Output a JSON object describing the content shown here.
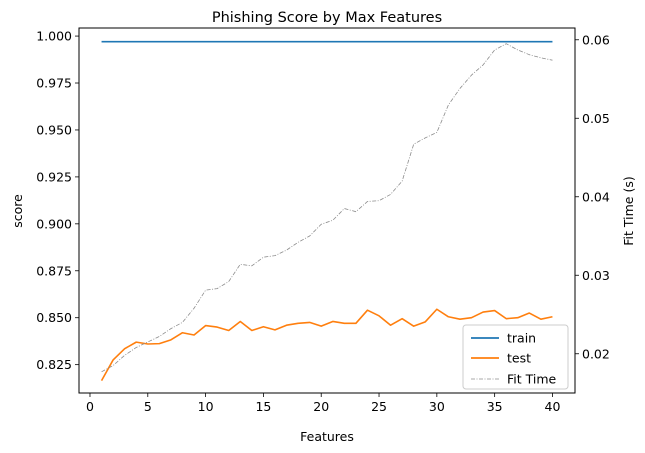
{
  "chart_data": {
    "type": "line",
    "title": "Phishing Score by Max Features",
    "xlabel": "Features",
    "ylabel": "score",
    "ylabel_right": "Fit Time (s)",
    "xlim": [
      -0.95,
      41.95
    ],
    "ylim": [
      0.8099,
      1.0043
    ],
    "ylim_right": [
      0.015,
      0.0615
    ],
    "xticks": [
      0,
      5,
      10,
      15,
      20,
      25,
      30,
      35,
      40
    ],
    "yticks": [
      0.825,
      0.85,
      0.875,
      0.9,
      0.925,
      0.95,
      0.975,
      1.0
    ],
    "yticks_right": [
      0.02,
      0.03,
      0.04,
      0.05,
      0.06
    ],
    "legend_position": "lower-right",
    "x": [
      1,
      2,
      3,
      4,
      5,
      6,
      7,
      8,
      9,
      10,
      11,
      12,
      13,
      14,
      15,
      16,
      17,
      18,
      19,
      20,
      21,
      22,
      23,
      24,
      25,
      26,
      27,
      28,
      29,
      30,
      31,
      32,
      33,
      34,
      35,
      36,
      37,
      38,
      39,
      40
    ],
    "series": [
      {
        "name": "train",
        "axis": "left",
        "color": "#1f77b4",
        "style": "solid",
        "values": [
          0.997,
          0.997,
          0.997,
          0.997,
          0.997,
          0.997,
          0.997,
          0.997,
          0.997,
          0.997,
          0.997,
          0.997,
          0.997,
          0.997,
          0.997,
          0.997,
          0.997,
          0.997,
          0.997,
          0.997,
          0.997,
          0.997,
          0.997,
          0.997,
          0.997,
          0.997,
          0.997,
          0.997,
          0.997,
          0.997,
          0.997,
          0.997,
          0.997,
          0.997,
          0.997,
          0.997,
          0.997,
          0.997,
          0.997,
          0.997
        ]
      },
      {
        "name": "test",
        "axis": "left",
        "color": "#ff7f0e",
        "style": "solid",
        "values": [
          0.8165,
          0.8275,
          0.8335,
          0.837,
          0.836,
          0.8362,
          0.8382,
          0.842,
          0.8408,
          0.8458,
          0.845,
          0.8432,
          0.848,
          0.8432,
          0.8452,
          0.8435,
          0.846,
          0.847,
          0.8475,
          0.8455,
          0.848,
          0.847,
          0.847,
          0.854,
          0.851,
          0.846,
          0.8495,
          0.8455,
          0.8478,
          0.8545,
          0.8505,
          0.8492,
          0.85,
          0.853,
          0.8538,
          0.8495,
          0.85,
          0.8525,
          0.8492,
          0.8505
        ]
      },
      {
        "name": "Fit Time",
        "axis": "right",
        "color": "#8c8c8c",
        "style": "dashdot",
        "values": [
          0.0177,
          0.0185,
          0.0198,
          0.0208,
          0.0215,
          0.0222,
          0.0232,
          0.024,
          0.0258,
          0.0281,
          0.0283,
          0.0292,
          0.0314,
          0.0312,
          0.0323,
          0.0325,
          0.0332,
          0.0342,
          0.035,
          0.0365,
          0.037,
          0.0385,
          0.0381,
          0.0394,
          0.0395,
          0.0403,
          0.042,
          0.0467,
          0.0475,
          0.0482,
          0.0517,
          0.0538,
          0.0555,
          0.0568,
          0.0587,
          0.0595,
          0.0587,
          0.0581,
          0.0577,
          0.0574
        ]
      }
    ]
  }
}
